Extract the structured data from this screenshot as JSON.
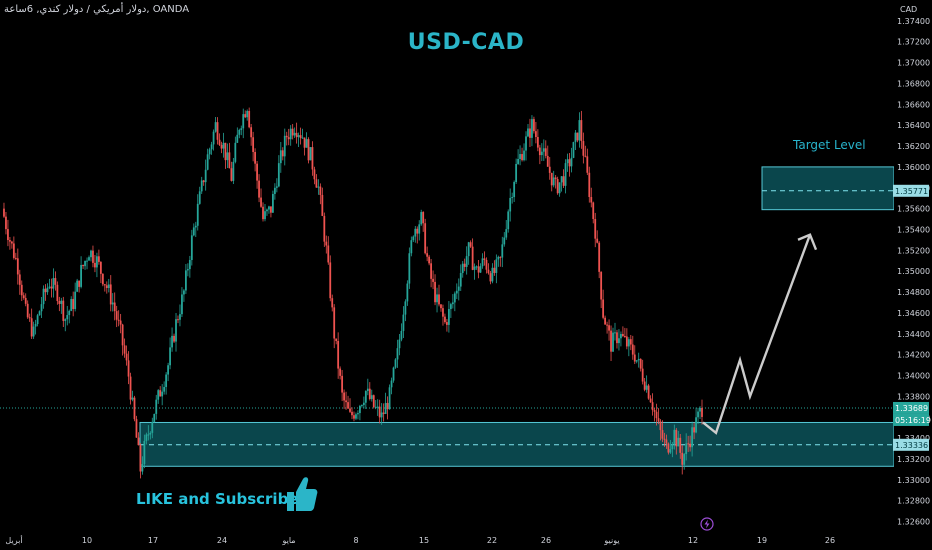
{
  "header": {
    "text": "دولار أمريكي / دولار كندي, 6ساعة, OANDA"
  },
  "title": "USD-CAD",
  "cta": "LIKE and Subscribe",
  "icons": {
    "thumb": "thumbs-up-icon",
    "flash": "lightning-icon"
  },
  "colors": {
    "up": "#26a69a",
    "down": "#ef5350",
    "zone": "#0e5e66",
    "zone_border": "#56c9d6",
    "accent": "#2bb5c8",
    "projection": "#cccccc"
  },
  "chart_data": {
    "type": "candlestick",
    "title": "USD-CAD",
    "axis_currency": "CAD",
    "ylim": [
      1.325,
      1.376
    ],
    "y_ticks": [
      "1.37400",
      "1.37200",
      "1.37000",
      "1.36800",
      "1.36600",
      "1.36400",
      "1.36200",
      "1.36000",
      "1.35800",
      "1.35600",
      "1.35400",
      "1.35200",
      "1.35000",
      "1.34800",
      "1.34600",
      "1.34400",
      "1.34200",
      "1.34000",
      "1.33800",
      "1.33600",
      "1.33400",
      "1.33200",
      "1.33000",
      "1.32800",
      "1.32600"
    ],
    "y_tick_values": [
      1.374,
      1.372,
      1.37,
      1.368,
      1.366,
      1.364,
      1.362,
      1.36,
      1.358,
      1.356,
      1.354,
      1.352,
      1.35,
      1.348,
      1.346,
      1.344,
      1.342,
      1.34,
      1.338,
      1.336,
      1.334,
      1.332,
      1.33,
      1.328,
      1.326
    ],
    "x_ticks": [
      "أبريل",
      "10",
      "17",
      "24",
      "مايو",
      "8",
      "15",
      "22",
      "26",
      "يونيو",
      "12",
      "19",
      "26"
    ],
    "price_path": [
      [
        0,
        1.356
      ],
      [
        4,
        1.353
      ],
      [
        8,
        1.3505
      ],
      [
        12,
        1.346
      ],
      [
        16,
        1.344
      ],
      [
        20,
        1.347
      ],
      [
        24,
        1.349
      ],
      [
        28,
        1.348
      ],
      [
        32,
        1.3455
      ],
      [
        36,
        1.347
      ],
      [
        40,
        1.35
      ],
      [
        44,
        1.352
      ],
      [
        48,
        1.351
      ],
      [
        52,
        1.349
      ],
      [
        56,
        1.347
      ],
      [
        60,
        1.344
      ],
      [
        64,
        1.34
      ],
      [
        68,
        1.334
      ],
      [
        70,
        1.331
      ],
      [
        72,
        1.333
      ],
      [
        76,
        1.336
      ],
      [
        80,
        1.3385
      ],
      [
        84,
        1.341
      ],
      [
        88,
        1.345
      ],
      [
        92,
        1.348
      ],
      [
        96,
        1.353
      ],
      [
        100,
        1.357
      ],
      [
        104,
        1.361
      ],
      [
        108,
        1.364
      ],
      [
        112,
        1.362
      ],
      [
        116,
        1.359
      ],
      [
        120,
        1.364
      ],
      [
        124,
        1.366
      ],
      [
        128,
        1.36
      ],
      [
        132,
        1.355
      ],
      [
        136,
        1.356
      ],
      [
        140,
        1.36
      ],
      [
        144,
        1.363
      ],
      [
        148,
        1.364
      ],
      [
        152,
        1.363
      ],
      [
        156,
        1.361
      ],
      [
        160,
        1.358
      ],
      [
        164,
        1.352
      ],
      [
        168,
        1.344
      ],
      [
        172,
        1.338
      ],
      [
        176,
        1.336
      ],
      [
        180,
        1.337
      ],
      [
        184,
        1.3385
      ],
      [
        188,
        1.337
      ],
      [
        192,
        1.336
      ],
      [
        196,
        1.338
      ],
      [
        200,
        1.342
      ],
      [
        204,
        1.348
      ],
      [
        208,
        1.354
      ],
      [
        212,
        1.355
      ],
      [
        216,
        1.35
      ],
      [
        220,
        1.347
      ],
      [
        224,
        1.345
      ],
      [
        228,
        1.347
      ],
      [
        232,
        1.35
      ],
      [
        236,
        1.352
      ],
      [
        240,
        1.35
      ],
      [
        244,
        1.351
      ],
      [
        248,
        1.3495
      ],
      [
        252,
        1.351
      ],
      [
        256,
        1.356
      ],
      [
        260,
        1.36
      ],
      [
        264,
        1.362
      ],
      [
        268,
        1.364
      ],
      [
        272,
        1.362
      ],
      [
        276,
        1.36
      ],
      [
        280,
        1.358
      ],
      [
        284,
        1.359
      ],
      [
        288,
        1.361
      ],
      [
        292,
        1.364
      ],
      [
        296,
        1.359
      ],
      [
        300,
        1.354
      ],
      [
        304,
        1.346
      ],
      [
        308,
        1.343
      ],
      [
        312,
        1.344
      ],
      [
        316,
        1.343
      ],
      [
        320,
        1.342
      ],
      [
        324,
        1.34
      ],
      [
        328,
        1.338
      ],
      [
        332,
        1.335
      ],
      [
        336,
        1.333
      ],
      [
        340,
        1.3345
      ],
      [
        344,
        1.332
      ],
      [
        348,
        1.334
      ],
      [
        352,
        1.336
      ],
      [
        354,
        1.3369
      ]
    ],
    "last_price": "1.33689",
    "last_price_value": 1.33689,
    "countdown": "05:16:19",
    "zone_mid_label": "1.33336",
    "zone_mid_value": 1.33336,
    "support_zone": {
      "low": 1.3313,
      "high": 1.3355
    },
    "target_zone": {
      "low": 1.3559,
      "high": 1.36,
      "label": "Target Level",
      "mid_label": "1.35771",
      "mid_value": 1.35771
    },
    "projection": [
      [
        1.3355
      ],
      [
        1.3345
      ],
      [
        1.3415
      ],
      [
        1.338
      ],
      [
        1.3535
      ]
    ]
  }
}
